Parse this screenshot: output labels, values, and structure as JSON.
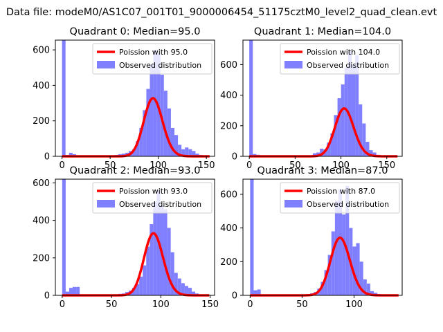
{
  "figure": {
    "suptitle": "Data file: modeM0/AS1C07_001T01_9000006454_51175cztM0_level2_quad_clean.evt"
  },
  "colors": {
    "bars": "#8080ff",
    "poisson": "#ff0000",
    "axis": "#000000"
  },
  "chart_data": [
    {
      "type": "bar",
      "title": "Quadrant 0: Median=95.0",
      "xticks": [
        0,
        50,
        100,
        150
      ],
      "yticks": [
        0,
        200,
        400,
        600
      ],
      "xlim": [
        -6.9,
        158.5
      ],
      "ylim": [
        0,
        655
      ],
      "bin_width": 3.65,
      "bar_x": [
        0,
        3.65,
        7.3,
        10.95,
        14.6,
        18.25,
        21.9,
        25.55,
        29.2,
        32.85,
        36.5,
        40.15,
        43.8,
        47.45,
        51.1,
        54.75,
        58.4,
        62.05,
        65.7,
        69.35,
        73,
        76.65,
        80.3,
        83.95,
        87.6,
        91.25,
        94.9,
        98.55,
        102.2,
        105.85,
        109.5,
        113.15,
        116.8,
        120.45,
        124.1,
        127.75,
        131.4,
        135.05,
        138.7,
        142.35,
        146,
        149.65
      ],
      "bar_heights": [
        655,
        8,
        20,
        12,
        4,
        3,
        2,
        2,
        2,
        2,
        2,
        2,
        2,
        2,
        5,
        8,
        12,
        15,
        20,
        30,
        40,
        85,
        160,
        260,
        380,
        520,
        600,
        580,
        460,
        370,
        270,
        160,
        120,
        65,
        40,
        50,
        40,
        30,
        15,
        8,
        5,
        3
      ],
      "poisson_mean": 95.0,
      "poisson_scale": 8000,
      "legend": [
        "Poission with 95.0",
        "Observed distribution"
      ]
    },
    {
      "type": "bar",
      "title": "Quadrant 1: Median=104.0",
      "xticks": [
        0,
        50,
        100,
        150
      ],
      "yticks": [
        0,
        200,
        400,
        600
      ],
      "xlim": [
        -6.9,
        166.8
      ],
      "ylim": [
        0,
        760
      ],
      "bin_width": 3.85,
      "bar_x": [
        0,
        3.85,
        7.7,
        11.55,
        15.4,
        19.25,
        23.1,
        26.95,
        30.8,
        34.65,
        38.5,
        42.35,
        46.2,
        50.05,
        53.9,
        57.75,
        61.6,
        65.45,
        69.3,
        73.15,
        77,
        80.85,
        84.7,
        88.55,
        92.4,
        96.25,
        100.1,
        103.95,
        107.8,
        111.65,
        115.5,
        119.35,
        123.2,
        127.05,
        130.9,
        134.75,
        138.6,
        142.45,
        146.3,
        150.15,
        154,
        157.85
      ],
      "bar_heights": [
        760,
        15,
        10,
        5,
        3,
        2,
        2,
        2,
        2,
        2,
        2,
        2,
        2,
        2,
        2,
        2,
        2,
        5,
        20,
        25,
        50,
        45,
        90,
        150,
        270,
        380,
        470,
        580,
        690,
        600,
        660,
        340,
        215,
        95,
        40,
        25,
        10,
        5,
        3,
        2,
        2,
        2
      ],
      "poisson_mean": 104.0,
      "poisson_scale": 8000,
      "legend": [
        "Poission with 104.0",
        "Observed distribution"
      ]
    },
    {
      "type": "bar",
      "title": "Quadrant 2: Median=93.0",
      "xticks": [
        0,
        50,
        100,
        150
      ],
      "yticks": [
        0,
        200,
        400,
        600
      ],
      "xlim": [
        -6.9,
        154.5
      ],
      "ylim": [
        0,
        620
      ],
      "bin_width": 3.55,
      "bar_x": [
        0,
        3.55,
        7.1,
        10.65,
        14.2,
        17.75,
        21.3,
        24.85,
        28.4,
        31.95,
        35.5,
        39.05,
        42.6,
        46.15,
        49.7,
        53.25,
        56.8,
        60.35,
        63.9,
        67.45,
        71,
        74.55,
        78.1,
        81.65,
        85.2,
        88.75,
        92.3,
        95.85,
        99.4,
        102.95,
        106.5,
        110.05,
        113.6,
        117.15,
        120.7,
        124.25,
        127.8,
        131.35,
        134.9,
        138.45,
        142,
        145.55
      ],
      "bar_heights": [
        620,
        20,
        40,
        45,
        45,
        5,
        2,
        2,
        2,
        2,
        2,
        2,
        2,
        2,
        2,
        5,
        8,
        10,
        18,
        25,
        40,
        60,
        100,
        160,
        260,
        380,
        500,
        560,
        480,
        460,
        360,
        230,
        120,
        90,
        65,
        50,
        40,
        20,
        10,
        5,
        3,
        2
      ],
      "poisson_mean": 93.0,
      "poisson_scale": 8000,
      "legend": [
        "Poission with 93.0",
        "Observed distribution"
      ]
    },
    {
      "type": "bar",
      "title": "Quadrant 3: Median=87.0",
      "xticks": [
        0,
        50,
        100
      ],
      "yticks": [
        0,
        200,
        400,
        600
      ],
      "xlim": [
        -6.9,
        146.3
      ],
      "ylim": [
        0,
        690
      ],
      "bin_width": 3.4,
      "bar_x": [
        0,
        3.4,
        6.8,
        10.2,
        13.6,
        17,
        20.4,
        23.8,
        27.2,
        30.6,
        34,
        37.4,
        40.8,
        44.2,
        47.6,
        51,
        54.4,
        57.8,
        61.2,
        64.6,
        68,
        71.4,
        74.8,
        78.2,
        81.6,
        85,
        88.4,
        91.8,
        95.2,
        98.6,
        102,
        105.4,
        108.8,
        112.2,
        115.6,
        119,
        122.4,
        125.8,
        129.2,
        132.6,
        136,
        139.4
      ],
      "bar_heights": [
        690,
        30,
        35,
        5,
        3,
        2,
        2,
        2,
        2,
        2,
        2,
        2,
        2,
        2,
        2,
        5,
        8,
        12,
        20,
        40,
        80,
        150,
        240,
        380,
        560,
        630,
        480,
        650,
        400,
        290,
        310,
        200,
        95,
        70,
        25,
        15,
        8,
        5,
        3,
        2,
        2,
        2
      ],
      "poisson_mean": 87.0,
      "poisson_scale": 8000,
      "legend": [
        "Poission with 87.0",
        "Observed distribution"
      ]
    }
  ]
}
